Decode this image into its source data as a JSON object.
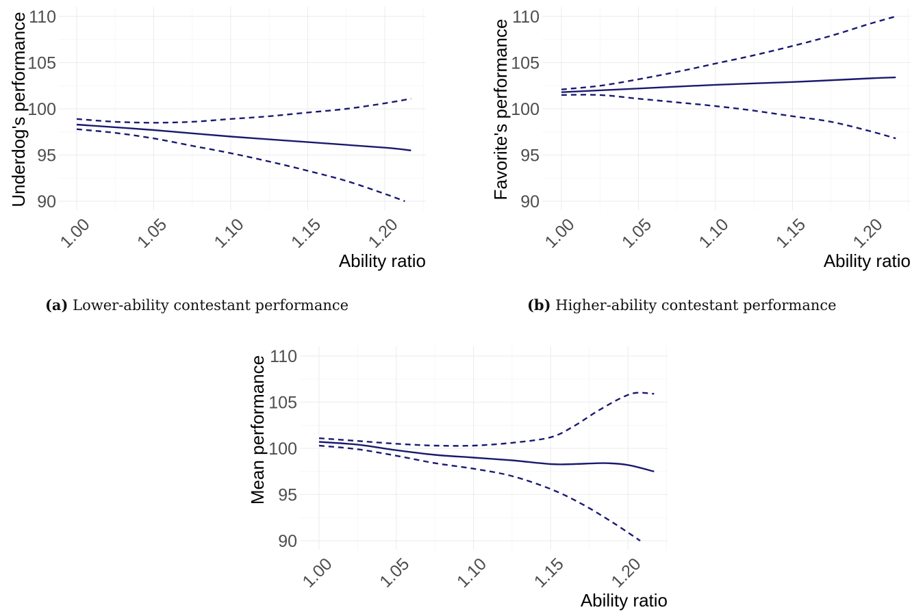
{
  "chart_data": [
    {
      "id": "a",
      "type": "line",
      "caption_label": "(a)",
      "caption_text": "Lower-ability contestant performance",
      "xlabel": "Ability ratio",
      "ylabel": "Underdog's performance",
      "xlim": [
        0.985,
        1.232
      ],
      "ylim": [
        89.2,
        110.8
      ],
      "xticks": [
        1.0,
        1.05,
        1.1,
        1.15,
        1.2
      ],
      "xtick_labels": [
        "1.00",
        "1.05",
        "1.10",
        "1.15",
        "1.20"
      ],
      "yticks": [
        90,
        95,
        100,
        105,
        110
      ],
      "ytick_labels": [
        "90",
        "95",
        "100",
        "105",
        "110"
      ],
      "grid": true,
      "color": "#191970",
      "series": [
        {
          "name": "estimate",
          "style": "solid",
          "x": [
            1.0,
            1.05,
            1.1,
            1.15,
            1.2,
            1.217
          ],
          "y": [
            98.3,
            97.7,
            97.0,
            96.4,
            95.8,
            95.5
          ]
        },
        {
          "name": "upper",
          "style": "dashed",
          "x": [
            1.0,
            1.025,
            1.05,
            1.075,
            1.1,
            1.125,
            1.15,
            1.175,
            1.2,
            1.217
          ],
          "y": [
            98.9,
            98.6,
            98.5,
            98.6,
            98.9,
            99.2,
            99.6,
            100.0,
            100.6,
            101.1
          ]
        },
        {
          "name": "lower",
          "style": "dashed",
          "x": [
            1.0,
            1.025,
            1.05,
            1.075,
            1.1,
            1.125,
            1.15,
            1.175,
            1.2,
            1.213
          ],
          "y": [
            97.8,
            97.4,
            96.8,
            96.0,
            95.2,
            94.3,
            93.3,
            92.2,
            90.8,
            90.0
          ]
        }
      ]
    },
    {
      "id": "b",
      "type": "line",
      "caption_label": "(b)",
      "caption_text": "Higher-ability contestant performance",
      "xlabel": "Ability ratio",
      "ylabel": "Favorite's performance",
      "xlim": [
        0.985,
        1.232
      ],
      "ylim": [
        89.2,
        110.8
      ],
      "xticks": [
        1.0,
        1.05,
        1.1,
        1.15,
        1.2
      ],
      "xtick_labels": [
        "1.00",
        "1.05",
        "1.10",
        "1.15",
        "1.20"
      ],
      "yticks": [
        90,
        95,
        100,
        105,
        110
      ],
      "ytick_labels": [
        "90",
        "95",
        "100",
        "105",
        "110"
      ],
      "grid": true,
      "color": "#191970",
      "series": [
        {
          "name": "estimate",
          "style": "solid",
          "x": [
            1.0,
            1.05,
            1.1,
            1.15,
            1.2,
            1.217
          ],
          "y": [
            101.8,
            102.2,
            102.6,
            102.9,
            103.3,
            103.4
          ]
        },
        {
          "name": "upper",
          "style": "dashed",
          "x": [
            1.0,
            1.025,
            1.05,
            1.075,
            1.1,
            1.125,
            1.15,
            1.175,
            1.2,
            1.217
          ],
          "y": [
            102.1,
            102.5,
            103.2,
            104.0,
            104.9,
            105.8,
            106.8,
            107.9,
            109.2,
            110.0
          ]
        },
        {
          "name": "lower",
          "style": "dashed",
          "x": [
            1.0,
            1.025,
            1.05,
            1.075,
            1.1,
            1.125,
            1.15,
            1.175,
            1.2,
            1.217
          ],
          "y": [
            101.5,
            101.5,
            101.1,
            100.7,
            100.3,
            99.8,
            99.2,
            98.6,
            97.6,
            96.8
          ]
        }
      ]
    },
    {
      "id": "c",
      "type": "line",
      "caption_label": "",
      "caption_text": "",
      "xlabel": "Ability ratio",
      "ylabel": "Mean performance",
      "xlim": [
        0.985,
        1.232
      ],
      "ylim": [
        89.2,
        110.8
      ],
      "xticks": [
        1.0,
        1.05,
        1.1,
        1.15,
        1.2
      ],
      "xtick_labels": [
        "1.00",
        "1.05",
        "1.10",
        "1.15",
        "1.20"
      ],
      "yticks": [
        90,
        95,
        100,
        105,
        110
      ],
      "ytick_labels": [
        "90",
        "95",
        "100",
        "105",
        "110"
      ],
      "grid": true,
      "color": "#191970",
      "series": [
        {
          "name": "estimate",
          "style": "solid",
          "x": [
            1.0,
            1.025,
            1.05,
            1.075,
            1.1,
            1.125,
            1.15,
            1.165,
            1.185,
            1.2,
            1.217
          ],
          "y": [
            100.7,
            100.4,
            99.8,
            99.3,
            99.0,
            98.7,
            98.3,
            98.3,
            98.4,
            98.2,
            97.5
          ]
        },
        {
          "name": "upper",
          "style": "dashed",
          "x": [
            1.0,
            1.025,
            1.05,
            1.075,
            1.1,
            1.125,
            1.15,
            1.165,
            1.18,
            1.195,
            1.205,
            1.217
          ],
          "y": [
            101.1,
            100.8,
            100.5,
            100.3,
            100.3,
            100.6,
            101.2,
            102.4,
            104.0,
            105.4,
            106.0,
            105.9
          ]
        },
        {
          "name": "lower",
          "style": "dashed",
          "x": [
            1.0,
            1.025,
            1.05,
            1.075,
            1.1,
            1.125,
            1.15,
            1.17,
            1.19,
            1.208
          ],
          "y": [
            100.3,
            99.9,
            99.2,
            98.4,
            97.8,
            97.0,
            95.6,
            94.0,
            92.0,
            90.0
          ]
        }
      ]
    }
  ]
}
